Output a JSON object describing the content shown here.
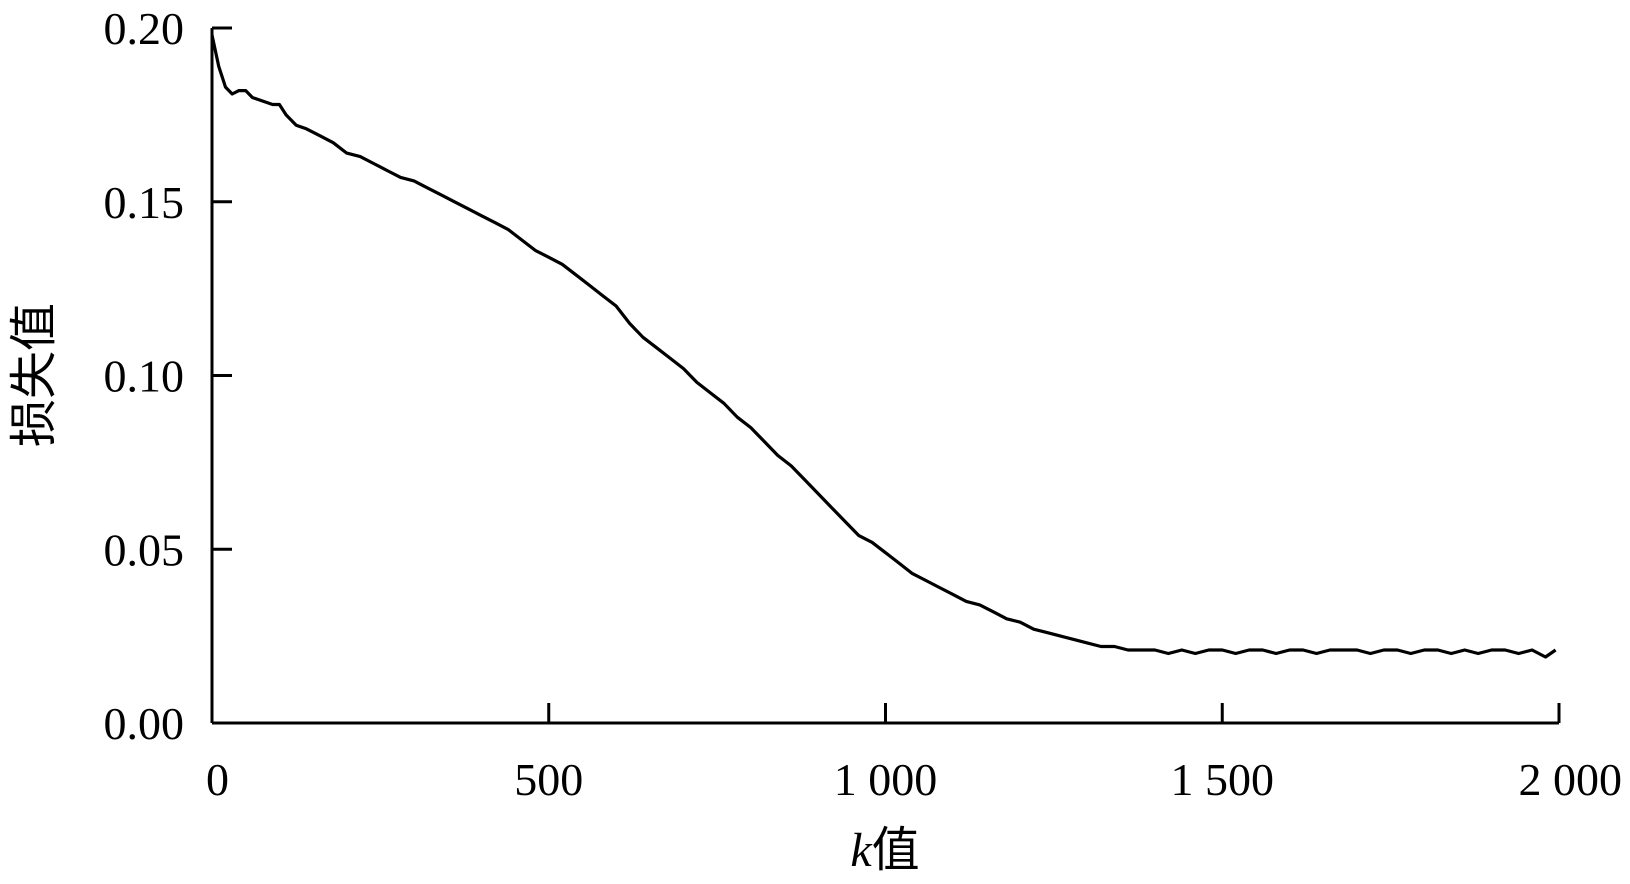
{
  "chart_data": {
    "type": "line",
    "xlabel_italic": "k",
    "xlabel_rest": "值",
    "ylabel": "损失值",
    "xlim": [
      0,
      2000
    ],
    "ylim": [
      0,
      0.2
    ],
    "x_ticks": [
      0,
      500,
      1000,
      1500,
      2000
    ],
    "x_tick_labels": [
      "0",
      "500",
      "1 000",
      "1 500",
      "2 000"
    ],
    "y_ticks": [
      0,
      0.05,
      0.1,
      0.15,
      0.2
    ],
    "y_tick_labels": [
      "0.00",
      "0.05",
      "0.10",
      "0.15",
      "0.20"
    ],
    "grid": false,
    "series": [
      {
        "color": "#000000",
        "x": [
          0,
          10,
          20,
          30,
          40,
          50,
          60,
          75,
          90,
          100,
          110,
          125,
          140,
          160,
          180,
          200,
          220,
          240,
          260,
          280,
          300,
          320,
          340,
          360,
          380,
          400,
          420,
          440,
          460,
          480,
          500,
          520,
          540,
          560,
          580,
          600,
          620,
          640,
          660,
          680,
          700,
          720,
          740,
          760,
          780,
          800,
          820,
          840,
          860,
          880,
          900,
          920,
          940,
          960,
          980,
          1000,
          1020,
          1040,
          1060,
          1080,
          1100,
          1120,
          1140,
          1160,
          1180,
          1200,
          1220,
          1240,
          1260,
          1280,
          1300,
          1320,
          1340,
          1360,
          1380,
          1400,
          1420,
          1440,
          1460,
          1480,
          1500,
          1520,
          1540,
          1560,
          1580,
          1600,
          1620,
          1640,
          1660,
          1680,
          1700,
          1720,
          1740,
          1760,
          1780,
          1800,
          1820,
          1840,
          1860,
          1880,
          1900,
          1920,
          1940,
          1960,
          1980,
          1995
        ],
        "y": [
          0.198,
          0.189,
          0.183,
          0.181,
          0.182,
          0.182,
          0.18,
          0.179,
          0.178,
          0.178,
          0.175,
          0.172,
          0.171,
          0.169,
          0.167,
          0.164,
          0.163,
          0.161,
          0.159,
          0.157,
          0.156,
          0.154,
          0.152,
          0.15,
          0.148,
          0.146,
          0.144,
          0.142,
          0.139,
          0.136,
          0.134,
          0.132,
          0.129,
          0.126,
          0.123,
          0.12,
          0.115,
          0.111,
          0.108,
          0.105,
          0.102,
          0.098,
          0.095,
          0.092,
          0.088,
          0.085,
          0.081,
          0.077,
          0.074,
          0.07,
          0.066,
          0.062,
          0.058,
          0.054,
          0.052,
          0.049,
          0.046,
          0.043,
          0.041,
          0.039,
          0.037,
          0.035,
          0.034,
          0.032,
          0.03,
          0.029,
          0.027,
          0.026,
          0.025,
          0.024,
          0.023,
          0.022,
          0.022,
          0.021,
          0.021,
          0.021,
          0.02,
          0.021,
          0.02,
          0.021,
          0.021,
          0.02,
          0.021,
          0.021,
          0.02,
          0.021,
          0.021,
          0.02,
          0.021,
          0.021,
          0.021,
          0.02,
          0.021,
          0.021,
          0.02,
          0.021,
          0.021,
          0.02,
          0.021,
          0.02,
          0.021,
          0.021,
          0.02,
          0.021,
          0.019,
          0.021
        ]
      }
    ]
  }
}
